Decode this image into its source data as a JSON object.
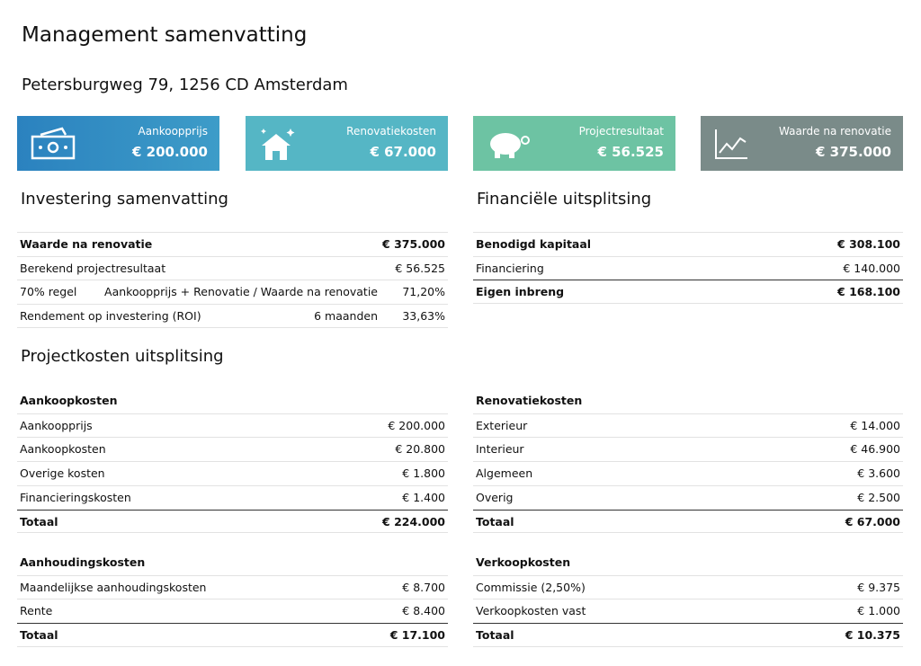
{
  "header": {
    "title": "Management samenvatting",
    "address": "Petersburgweg 79, 1256 CD Amsterdam"
  },
  "cards": [
    {
      "label": "Aankoopprijs",
      "value": "€ 200.000"
    },
    {
      "label": "Renovatiekosten",
      "value": "€ 67.000"
    },
    {
      "label": "Projectresultaat",
      "value": "€ 56.525"
    },
    {
      "label": "Waarde na renovatie",
      "value": "€ 375.000"
    }
  ],
  "investment": {
    "title": "Investering samenvatting",
    "rows": [
      {
        "label": "Waarde na renovatie",
        "value": "€ 375.000"
      },
      {
        "label": "Berekend projectresultaat",
        "value": "€ 56.525"
      },
      {
        "label": "70% regel",
        "note": "Aankoopprijs + Renovatie / Waarde na renovatie",
        "value": "71,20%"
      },
      {
        "label": "Rendement op investering (ROI)",
        "note": "6 maanden",
        "value": "33,63%"
      }
    ]
  },
  "financial": {
    "title": "Financiële uitsplitsing",
    "rows": [
      {
        "label": "Benodigd kapitaal",
        "value": "€ 308.100"
      },
      {
        "label": "Financiering",
        "value": "€ 140.000"
      },
      {
        "label": "Eigen inbreng",
        "value": "€ 168.100"
      }
    ]
  },
  "project_costs": {
    "title": "Projectkosten uitsplitsing",
    "groups": [
      {
        "title": "Aankoopkosten",
        "rows": [
          {
            "label": "Aankoopprijs",
            "value": "€ 200.000"
          },
          {
            "label": "Aankoopkosten",
            "value": "€ 20.800"
          },
          {
            "label": "Overige kosten",
            "value": "€ 1.800"
          },
          {
            "label": "Financieringskosten",
            "value": "€ 1.400"
          }
        ],
        "total": {
          "label": "Totaal",
          "value": "€ 224.000"
        }
      },
      {
        "title": "Renovatiekosten",
        "rows": [
          {
            "label": "Exterieur",
            "value": "€ 14.000"
          },
          {
            "label": "Interieur",
            "value": "€ 46.900"
          },
          {
            "label": "Algemeen",
            "value": "€ 3.600"
          },
          {
            "label": "Overig",
            "value": "€ 2.500"
          }
        ],
        "total": {
          "label": "Totaal",
          "value": "€ 67.000"
        }
      },
      {
        "title": "Aanhoudingskosten",
        "rows": [
          {
            "label": "Maandelijkse aanhoudingskosten",
            "value": "€ 8.700"
          },
          {
            "label": "Rente",
            "value": "€ 8.400"
          }
        ],
        "total": {
          "label": "Totaal",
          "value": "€ 17.100"
        }
      },
      {
        "title": "Verkoopkosten",
        "rows": [
          {
            "label": "Commissie (2,50%)",
            "value": "€ 9.375"
          },
          {
            "label": "Verkoopkosten vast",
            "value": "€ 1.000"
          }
        ],
        "total": {
          "label": "Totaal",
          "value": "€ 10.375"
        }
      }
    ]
  }
}
